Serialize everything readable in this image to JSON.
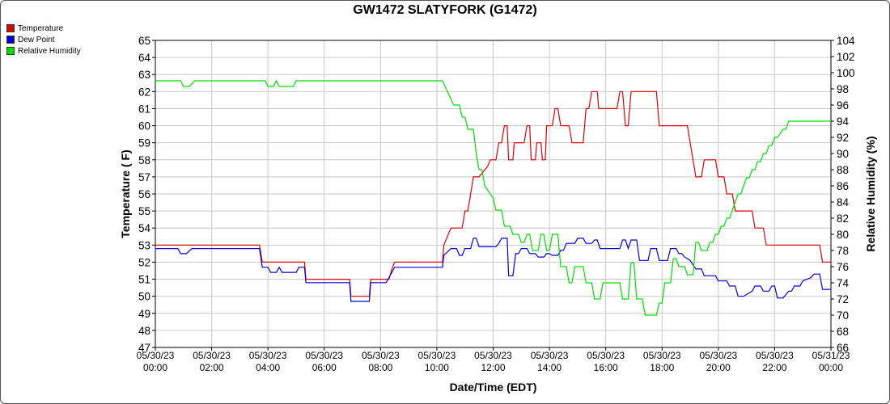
{
  "chart_data": {
    "type": "line",
    "title": "GW1472 SLATYFORK (G1472)",
    "xlabel": "Date/Time (EDT)",
    "ylabel": "Temperature ( F)",
    "y2label": "Relative Humidity (%)",
    "ylim": [
      47,
      65
    ],
    "y2lim": [
      66,
      104
    ],
    "xlim": [
      0,
      24
    ],
    "grid": true,
    "legend_position": "top-left",
    "yticks": [
      "65",
      "64",
      "63",
      "62",
      "61",
      "60",
      "59",
      "58",
      "57",
      "56",
      "55",
      "54",
      "53",
      "52",
      "51",
      "50",
      "49",
      "48",
      "47"
    ],
    "y2ticks": [
      "104",
      "102",
      "100",
      "98",
      "96",
      "94",
      "92",
      "90",
      "88",
      "86",
      "84",
      "82",
      "80",
      "78",
      "76",
      "74",
      "72",
      "70",
      "68",
      "66"
    ],
    "xticks": [
      {
        "date": "05/30/23",
        "time": "00:00"
      },
      {
        "date": "05/30/23",
        "time": "02:00"
      },
      {
        "date": "05/30/23",
        "time": "04:00"
      },
      {
        "date": "05/30/23",
        "time": "06:00"
      },
      {
        "date": "05/30/23",
        "time": "08:00"
      },
      {
        "date": "05/30/23",
        "time": "10:00"
      },
      {
        "date": "05/30/23",
        "time": "12:00"
      },
      {
        "date": "05/30/23",
        "time": "14:00"
      },
      {
        "date": "05/30/23",
        "time": "16:00"
      },
      {
        "date": "05/30/23",
        "time": "18:00"
      },
      {
        "date": "05/30/23",
        "time": "20:00"
      },
      {
        "date": "05/30/23",
        "time": "22:00"
      },
      {
        "date": "05/31/23",
        "time": "00:00"
      }
    ],
    "series": [
      {
        "name": "Temperature",
        "color": "#dd0000",
        "axis": "left",
        "points": [
          [
            0,
            53
          ],
          [
            3.7,
            53
          ],
          [
            3.8,
            52
          ],
          [
            5.3,
            52
          ],
          [
            5.35,
            51
          ],
          [
            6.9,
            51
          ],
          [
            6.95,
            50
          ],
          [
            7.6,
            50
          ],
          [
            7.65,
            51
          ],
          [
            8.3,
            51
          ],
          [
            8.4,
            51.6
          ],
          [
            8.5,
            52
          ],
          [
            10.2,
            52
          ],
          [
            10.25,
            53
          ],
          [
            10.4,
            53.6
          ],
          [
            10.5,
            54
          ],
          [
            10.9,
            54
          ],
          [
            11,
            55
          ],
          [
            11.1,
            55
          ],
          [
            11.2,
            56
          ],
          [
            11.3,
            57
          ],
          [
            11.5,
            57
          ],
          [
            11.8,
            57.6
          ],
          [
            11.9,
            58
          ],
          [
            12.1,
            58
          ],
          [
            12.2,
            59
          ],
          [
            12.3,
            59
          ],
          [
            12.4,
            60
          ],
          [
            12.5,
            60
          ],
          [
            12.55,
            58
          ],
          [
            12.7,
            58
          ],
          [
            12.75,
            59
          ],
          [
            13.1,
            59
          ],
          [
            13.2,
            60
          ],
          [
            13.3,
            60
          ],
          [
            13.35,
            58
          ],
          [
            13.5,
            58
          ],
          [
            13.55,
            59
          ],
          [
            13.7,
            59
          ],
          [
            13.75,
            58
          ],
          [
            13.85,
            58
          ],
          [
            13.9,
            60
          ],
          [
            14.1,
            60
          ],
          [
            14.2,
            61
          ],
          [
            14.3,
            61
          ],
          [
            14.4,
            60
          ],
          [
            14.7,
            60
          ],
          [
            14.8,
            59
          ],
          [
            15.2,
            59
          ],
          [
            15.3,
            61
          ],
          [
            15.4,
            61
          ],
          [
            15.5,
            62
          ],
          [
            15.7,
            62
          ],
          [
            15.75,
            61
          ],
          [
            16.4,
            61
          ],
          [
            16.5,
            62
          ],
          [
            16.6,
            62
          ],
          [
            16.7,
            60
          ],
          [
            16.8,
            60
          ],
          [
            16.9,
            62
          ],
          [
            17.8,
            62
          ],
          [
            17.9,
            60
          ],
          [
            18.9,
            60
          ],
          [
            19,
            59
          ],
          [
            19.2,
            57
          ],
          [
            19.4,
            57
          ],
          [
            19.5,
            58
          ],
          [
            19.9,
            58
          ],
          [
            20,
            57
          ],
          [
            20.2,
            57
          ],
          [
            20.3,
            56
          ],
          [
            20.5,
            56
          ],
          [
            20.6,
            55
          ],
          [
            21.2,
            55
          ],
          [
            21.3,
            54
          ],
          [
            21.6,
            54
          ],
          [
            21.7,
            53
          ],
          [
            22.7,
            53
          ],
          [
            22.8,
            53
          ],
          [
            23.6,
            53
          ],
          [
            23.7,
            52
          ],
          [
            24,
            52
          ]
        ]
      },
      {
        "name": "Dew Point",
        "color": "#0000dd",
        "axis": "left",
        "points": [
          [
            0,
            52.8
          ],
          [
            0.8,
            52.8
          ],
          [
            0.9,
            52.5
          ],
          [
            1.1,
            52.5
          ],
          [
            1.3,
            52.8
          ],
          [
            3.7,
            52.8
          ],
          [
            3.8,
            51.7
          ],
          [
            4,
            51.7
          ],
          [
            4.1,
            51.4
          ],
          [
            4.3,
            51.4
          ],
          [
            4.4,
            51.7
          ],
          [
            4.5,
            51.4
          ],
          [
            5,
            51.4
          ],
          [
            5.1,
            51.7
          ],
          [
            5.3,
            51.7
          ],
          [
            5.35,
            50.8
          ],
          [
            6.9,
            50.8
          ],
          [
            6.95,
            49.7
          ],
          [
            7.6,
            49.7
          ],
          [
            7.65,
            50.8
          ],
          [
            8.2,
            50.8
          ],
          [
            8.4,
            51.4
          ],
          [
            8.5,
            51.7
          ],
          [
            10.2,
            51.7
          ],
          [
            10.25,
            52.4
          ],
          [
            10.5,
            52.8
          ],
          [
            10.7,
            52.8
          ],
          [
            10.8,
            52.4
          ],
          [
            10.9,
            52.4
          ],
          [
            11,
            52.8
          ],
          [
            11.2,
            52.8
          ],
          [
            11.3,
            53.4
          ],
          [
            11.4,
            53.4
          ],
          [
            11.5,
            52.9
          ],
          [
            12.1,
            52.9
          ],
          [
            12.2,
            53.1
          ],
          [
            12.3,
            53.4
          ],
          [
            12.5,
            53.4
          ],
          [
            12.55,
            51.2
          ],
          [
            12.7,
            51.2
          ],
          [
            12.8,
            52.5
          ],
          [
            12.9,
            52.5
          ],
          [
            13,
            52.8
          ],
          [
            13.2,
            52.8
          ],
          [
            13.3,
            52.5
          ],
          [
            13.5,
            52.5
          ],
          [
            13.6,
            52.3
          ],
          [
            13.8,
            52.3
          ],
          [
            13.9,
            52.5
          ],
          [
            14,
            52.5
          ],
          [
            14.1,
            52.4
          ],
          [
            14.3,
            52.4
          ],
          [
            14.4,
            52.7
          ],
          [
            14.5,
            52.7
          ],
          [
            14.6,
            53.1
          ],
          [
            14.9,
            53.1
          ],
          [
            15,
            53.4
          ],
          [
            15.2,
            53.4
          ],
          [
            15.3,
            53.1
          ],
          [
            15.5,
            53.1
          ],
          [
            15.6,
            53.3
          ],
          [
            15.7,
            53.3
          ],
          [
            15.8,
            52.8
          ],
          [
            16.5,
            52.8
          ],
          [
            16.6,
            53.3
          ],
          [
            16.7,
            53.3
          ],
          [
            16.8,
            52.8
          ],
          [
            16.9,
            53.3
          ],
          [
            17.1,
            53.3
          ],
          [
            17.2,
            52.1
          ],
          [
            17.5,
            52.1
          ],
          [
            17.6,
            52.8
          ],
          [
            17.8,
            52.8
          ],
          [
            17.9,
            52.1
          ],
          [
            18.2,
            52.1
          ],
          [
            18.3,
            52.8
          ],
          [
            18.5,
            52.8
          ],
          [
            18.6,
            52.5
          ],
          [
            18.7,
            52.5
          ],
          [
            18.8,
            52.3
          ],
          [
            19,
            52.1
          ],
          [
            19,
            52.1
          ],
          [
            19.2,
            51.6
          ],
          [
            19.4,
            51.6
          ],
          [
            19.5,
            51.2
          ],
          [
            19.9,
            51.2
          ],
          [
            20,
            50.9
          ],
          [
            20.3,
            50.9
          ],
          [
            20.4,
            50.6
          ],
          [
            20.6,
            50.6
          ],
          [
            20.7,
            50
          ],
          [
            20.9,
            50
          ],
          [
            21.2,
            50.3
          ],
          [
            21.3,
            50.6
          ],
          [
            21.5,
            50.6
          ],
          [
            21.6,
            50.3
          ],
          [
            21.8,
            50.3
          ],
          [
            21.9,
            50.6
          ],
          [
            22,
            50.6
          ],
          [
            22.1,
            49.9
          ],
          [
            22.3,
            49.9
          ],
          [
            22.5,
            50.3
          ],
          [
            22.6,
            50.3
          ],
          [
            22.7,
            50.6
          ],
          [
            22.9,
            50.6
          ],
          [
            23,
            50.9
          ],
          [
            23.3,
            51.1
          ],
          [
            23.4,
            51.3
          ],
          [
            23.6,
            51.3
          ],
          [
            23.7,
            50.4
          ],
          [
            24,
            50.4
          ]
        ]
      },
      {
        "name": "Relative Humidity",
        "color": "#00dd00",
        "axis": "right",
        "points": [
          [
            0,
            99
          ],
          [
            0.9,
            99
          ],
          [
            1.0,
            98.3
          ],
          [
            1.2,
            98.3
          ],
          [
            1.4,
            99
          ],
          [
            3.9,
            99
          ],
          [
            4.0,
            98.3
          ],
          [
            4.2,
            98.3
          ],
          [
            4.3,
            99
          ],
          [
            4.4,
            98.3
          ],
          [
            4.9,
            98.3
          ],
          [
            5.0,
            99
          ],
          [
            10.2,
            99
          ],
          [
            10.4,
            97.5
          ],
          [
            10.6,
            96
          ],
          [
            10.8,
            96
          ],
          [
            10.9,
            94.5
          ],
          [
            11,
            94.5
          ],
          [
            11.1,
            93
          ],
          [
            11.3,
            93
          ],
          [
            11.4,
            90
          ],
          [
            11.5,
            88
          ],
          [
            11.6,
            88
          ],
          [
            11.7,
            86
          ],
          [
            12.0,
            84.5
          ],
          [
            12.1,
            83
          ],
          [
            12.3,
            83
          ],
          [
            12.4,
            81
          ],
          [
            12.6,
            81
          ],
          [
            12.7,
            80
          ],
          [
            12.9,
            80
          ],
          [
            13.0,
            79
          ],
          [
            13.1,
            79
          ],
          [
            13.2,
            80
          ],
          [
            13.3,
            80
          ],
          [
            13.4,
            78
          ],
          [
            13.6,
            78
          ],
          [
            13.7,
            80
          ],
          [
            13.8,
            80
          ],
          [
            13.9,
            78
          ],
          [
            14.0,
            78
          ],
          [
            14.1,
            80
          ],
          [
            14.3,
            80
          ],
          [
            14.4,
            76
          ],
          [
            14.6,
            76
          ],
          [
            14.7,
            74
          ],
          [
            14.8,
            74
          ],
          [
            14.9,
            76
          ],
          [
            15.2,
            76
          ],
          [
            15.3,
            74
          ],
          [
            15.5,
            74
          ],
          [
            15.6,
            72
          ],
          [
            15.8,
            72
          ],
          [
            15.9,
            74
          ],
          [
            16.5,
            74
          ],
          [
            16.6,
            72
          ],
          [
            16.8,
            72
          ],
          [
            16.9,
            76.5
          ],
          [
            17.0,
            76.5
          ],
          [
            17.1,
            72
          ],
          [
            17.3,
            72
          ],
          [
            17.4,
            70
          ],
          [
            17.8,
            70
          ],
          [
            17.9,
            71.5
          ],
          [
            18.0,
            71.5
          ],
          [
            18.1,
            74
          ],
          [
            18.3,
            74
          ],
          [
            18.4,
            77
          ],
          [
            18.5,
            77
          ],
          [
            18.6,
            76
          ],
          [
            18.8,
            76
          ],
          [
            18.9,
            75
          ],
          [
            19.1,
            75
          ],
          [
            19.2,
            79
          ],
          [
            19.3,
            79
          ],
          [
            19.4,
            78
          ],
          [
            19.6,
            78
          ],
          [
            19.7,
            79
          ],
          [
            19.8,
            79
          ],
          [
            19.9,
            80
          ],
          [
            20.0,
            80
          ],
          [
            20.1,
            81
          ],
          [
            20.2,
            81
          ],
          [
            20.3,
            82
          ],
          [
            20.4,
            82
          ],
          [
            20.5,
            83
          ],
          [
            20.6,
            84
          ],
          [
            20.7,
            85
          ],
          [
            20.8,
            85
          ],
          [
            20.9,
            86
          ],
          [
            21.0,
            87
          ],
          [
            21.1,
            87
          ],
          [
            21.2,
            88
          ],
          [
            21.3,
            88
          ],
          [
            21.4,
            89
          ],
          [
            21.5,
            89
          ],
          [
            21.6,
            90
          ],
          [
            21.7,
            90
          ],
          [
            21.8,
            91
          ],
          [
            21.9,
            91
          ],
          [
            22.0,
            92
          ],
          [
            22.1,
            92
          ],
          [
            22.3,
            93
          ],
          [
            22.4,
            93
          ],
          [
            22.5,
            94
          ],
          [
            22.8,
            94
          ],
          [
            23.0,
            94
          ],
          [
            24,
            94
          ]
        ]
      }
    ]
  }
}
